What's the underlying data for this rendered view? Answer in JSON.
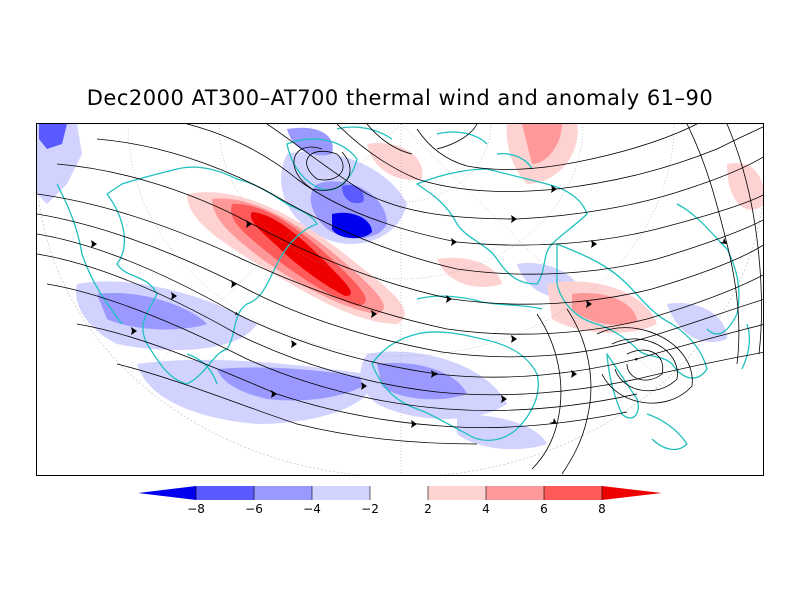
{
  "title": "Dec2000 AT300–AT700 thermal wind and anomaly 61–90",
  "colorbar": {
    "labels": [
      "−8",
      "−6",
      "−4",
      "−2",
      "2",
      "4",
      "6",
      "8"
    ],
    "colors": [
      "#0000ee",
      "#5a5aff",
      "#9999ff",
      "#d2d2ff",
      "#ffffff",
      "#ffd2d2",
      "#ff9999",
      "#ff5a5a",
      "#ee0000"
    ]
  },
  "map_colors": {
    "streamline": "#000000",
    "coastline": "#20c0c0",
    "graticule": "#999999"
  }
}
